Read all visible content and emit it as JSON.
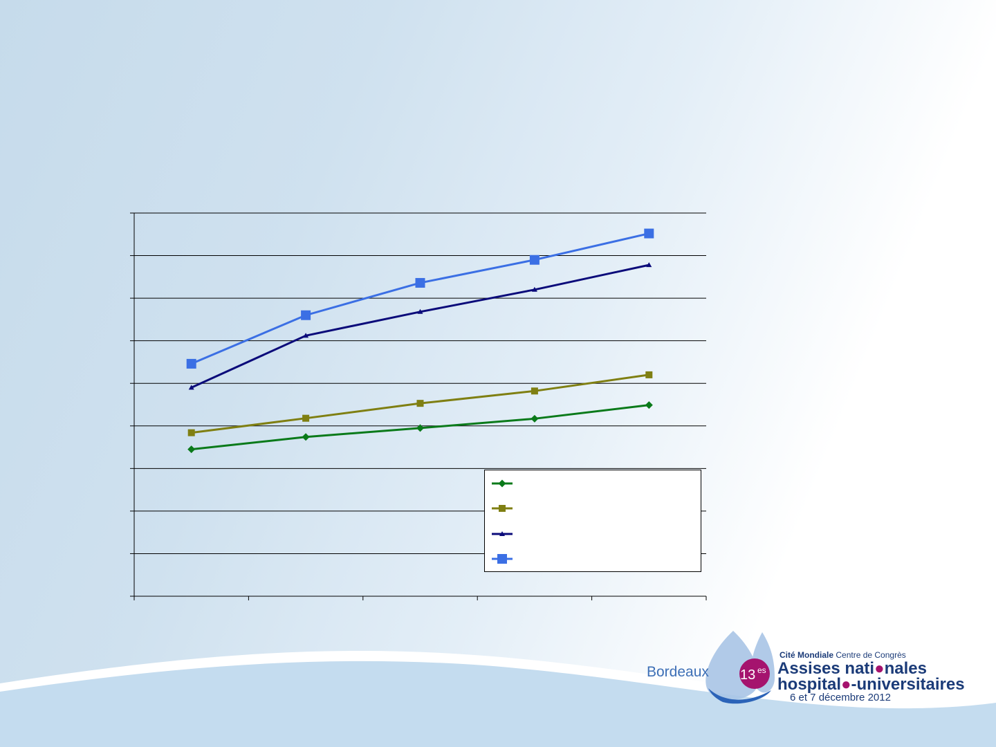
{
  "chart_data": {
    "type": "line",
    "title": "",
    "xlabel": "",
    "ylabel": "",
    "categories": [
      "",
      "",
      "",
      "",
      ""
    ],
    "ylim": [
      0,
      9
    ],
    "grid": true,
    "legend_position": "bottom-right",
    "series": [
      {
        "color": "#0a7a1a",
        "marker": "diamond",
        "values": [
          3.45,
          3.74,
          3.95,
          4.17,
          4.49
        ]
      },
      {
        "color": "#7f7f12",
        "marker": "square-small",
        "values": [
          3.84,
          4.18,
          4.53,
          4.82,
          5.2
        ]
      },
      {
        "color": "#0b0b7a",
        "marker": "triangle",
        "values": [
          4.9,
          6.12,
          6.68,
          7.2,
          7.78
        ]
      },
      {
        "color": "#3b6fe4",
        "marker": "square-large",
        "values": [
          5.46,
          6.6,
          7.36,
          7.9,
          8.52
        ]
      }
    ]
  },
  "legend": {
    "items": [
      {
        "label": "",
        "color": "#0a7a1a",
        "marker": "diamond"
      },
      {
        "label": "",
        "color": "#7f7f12",
        "marker": "square-small"
      },
      {
        "label": "",
        "color": "#0b0b7a",
        "marker": "triangle"
      },
      {
        "label": "",
        "color": "#3b6fe4",
        "marker": "square-large"
      }
    ]
  },
  "logo": {
    "city": "Bordeaux",
    "edition_number": "13",
    "edition_suffix": "es",
    "venue_bold": "Cité Mondiale",
    "venue_rest": " Centre de Congrès",
    "line1_a": "Assises nati",
    "line1_b": "nales",
    "line2_a": "hospital",
    "line2_b": "-universitaires",
    "dates": "6 et 7 décembre 2012",
    "accent_color": "#a5136e",
    "text_color": "#1b3b78"
  }
}
